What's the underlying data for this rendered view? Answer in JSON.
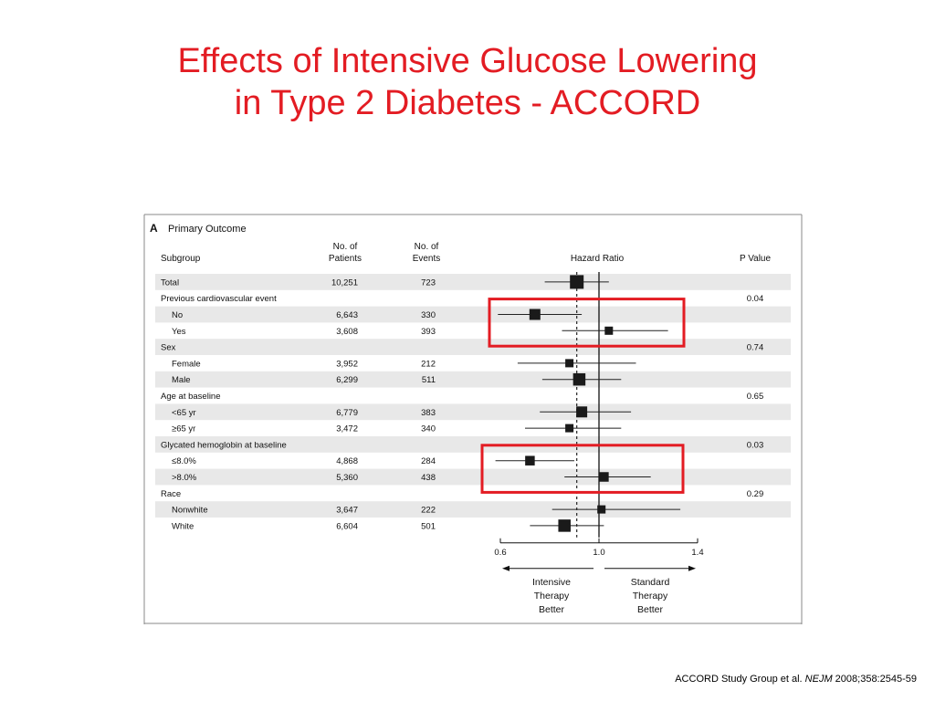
{
  "slide": {
    "title_line1": "Effects of Intensive Glucose Lowering",
    "title_line2": "in Type 2 Diabetes - ACCORD",
    "citation_pre": "ACCORD Study Group  et al. ",
    "citation_journal": "NEJM",
    "citation_post": " 2008;358:2545-59"
  },
  "chart_data": {
    "type": "forest",
    "panel_letter": "A",
    "panel_title": "Primary Outcome",
    "columns": {
      "subgroup": "Subgroup",
      "patients": [
        "No. of",
        "Patients"
      ],
      "events": [
        "No. of",
        "Events"
      ],
      "hazard": "Hazard Ratio",
      "pvalue": "P Value"
    },
    "rows": [
      {
        "label": "Total",
        "indent": 0,
        "patients": "10,251",
        "events": "723",
        "hr": 0.91,
        "lo": 0.78,
        "hi": 1.04,
        "size": 10,
        "shade": true
      },
      {
        "label": "Previous cardiovascular event",
        "indent": 0,
        "pvalue": "0.04",
        "shade": false
      },
      {
        "label": "No",
        "indent": 1,
        "patients": "6,643",
        "events": "330",
        "hr": 0.74,
        "lo": 0.59,
        "hi": 0.93,
        "size": 8,
        "shade": true
      },
      {
        "label": "Yes",
        "indent": 1,
        "patients": "3,608",
        "events": "393",
        "hr": 1.04,
        "lo": 0.85,
        "hi": 1.28,
        "size": 6,
        "shade": false
      },
      {
        "label": "Sex",
        "indent": 0,
        "pvalue": "0.74",
        "shade": true
      },
      {
        "label": "Female",
        "indent": 1,
        "patients": "3,952",
        "events": "212",
        "hr": 0.88,
        "lo": 0.67,
        "hi": 1.15,
        "size": 6,
        "shade": false
      },
      {
        "label": "Male",
        "indent": 1,
        "patients": "6,299",
        "events": "511",
        "hr": 0.92,
        "lo": 0.77,
        "hi": 1.09,
        "size": 9,
        "shade": true
      },
      {
        "label": "Age at baseline",
        "indent": 0,
        "pvalue": "0.65",
        "shade": false
      },
      {
        "label": "<65 yr",
        "indent": 1,
        "patients": "6,779",
        "events": "383",
        "hr": 0.93,
        "lo": 0.76,
        "hi": 1.13,
        "size": 8,
        "shade": true
      },
      {
        "label": "≥65 yr",
        "indent": 1,
        "patients": "3,472",
        "events": "340",
        "hr": 0.88,
        "lo": 0.7,
        "hi": 1.09,
        "size": 6,
        "shade": false
      },
      {
        "label": "Glycated hemoglobin at baseline",
        "indent": 0,
        "pvalue": "0.03",
        "shade": true
      },
      {
        "label": "≤8.0%",
        "indent": 1,
        "patients": "4,868",
        "events": "284",
        "hr": 0.72,
        "lo": 0.58,
        "hi": 0.9,
        "size": 7,
        "shade": false
      },
      {
        "label": ">8.0%",
        "indent": 1,
        "patients": "5,360",
        "events": "438",
        "hr": 1.02,
        "lo": 0.86,
        "hi": 1.21,
        "size": 7,
        "shade": true
      },
      {
        "label": "Race",
        "indent": 0,
        "pvalue": "0.29",
        "shade": false
      },
      {
        "label": "Nonwhite",
        "indent": 1,
        "patients": "3,647",
        "events": "222",
        "hr": 1.01,
        "lo": 0.81,
        "hi": 1.33,
        "size": 6,
        "shade": true
      },
      {
        "label": "White",
        "indent": 1,
        "patients": "6,604",
        "events": "501",
        "hr": 0.86,
        "lo": 0.72,
        "hi": 1.02,
        "size": 9,
        "shade": false
      }
    ],
    "x_axis": {
      "min": 0.6,
      "max": 1.4,
      "ticks": [
        0.6,
        1.0,
        1.4
      ],
      "tick_labels": [
        "0.6",
        "1.0",
        "1.4"
      ],
      "reference": 1.0,
      "overall_estimate": 0.91
    },
    "direction_labels": {
      "left": [
        "Intensive",
        "Therapy",
        "Better"
      ],
      "right": [
        "Standard",
        "Therapy",
        "Better"
      ]
    },
    "highlight_groups": [
      "Previous cardiovascular event",
      "Glycated hemoglobin at baseline"
    ],
    "colors": {
      "highlight": "#e31c23",
      "marker": "#1a1a1a",
      "shade": "#e8e8e8",
      "title": "#e31c23"
    }
  }
}
